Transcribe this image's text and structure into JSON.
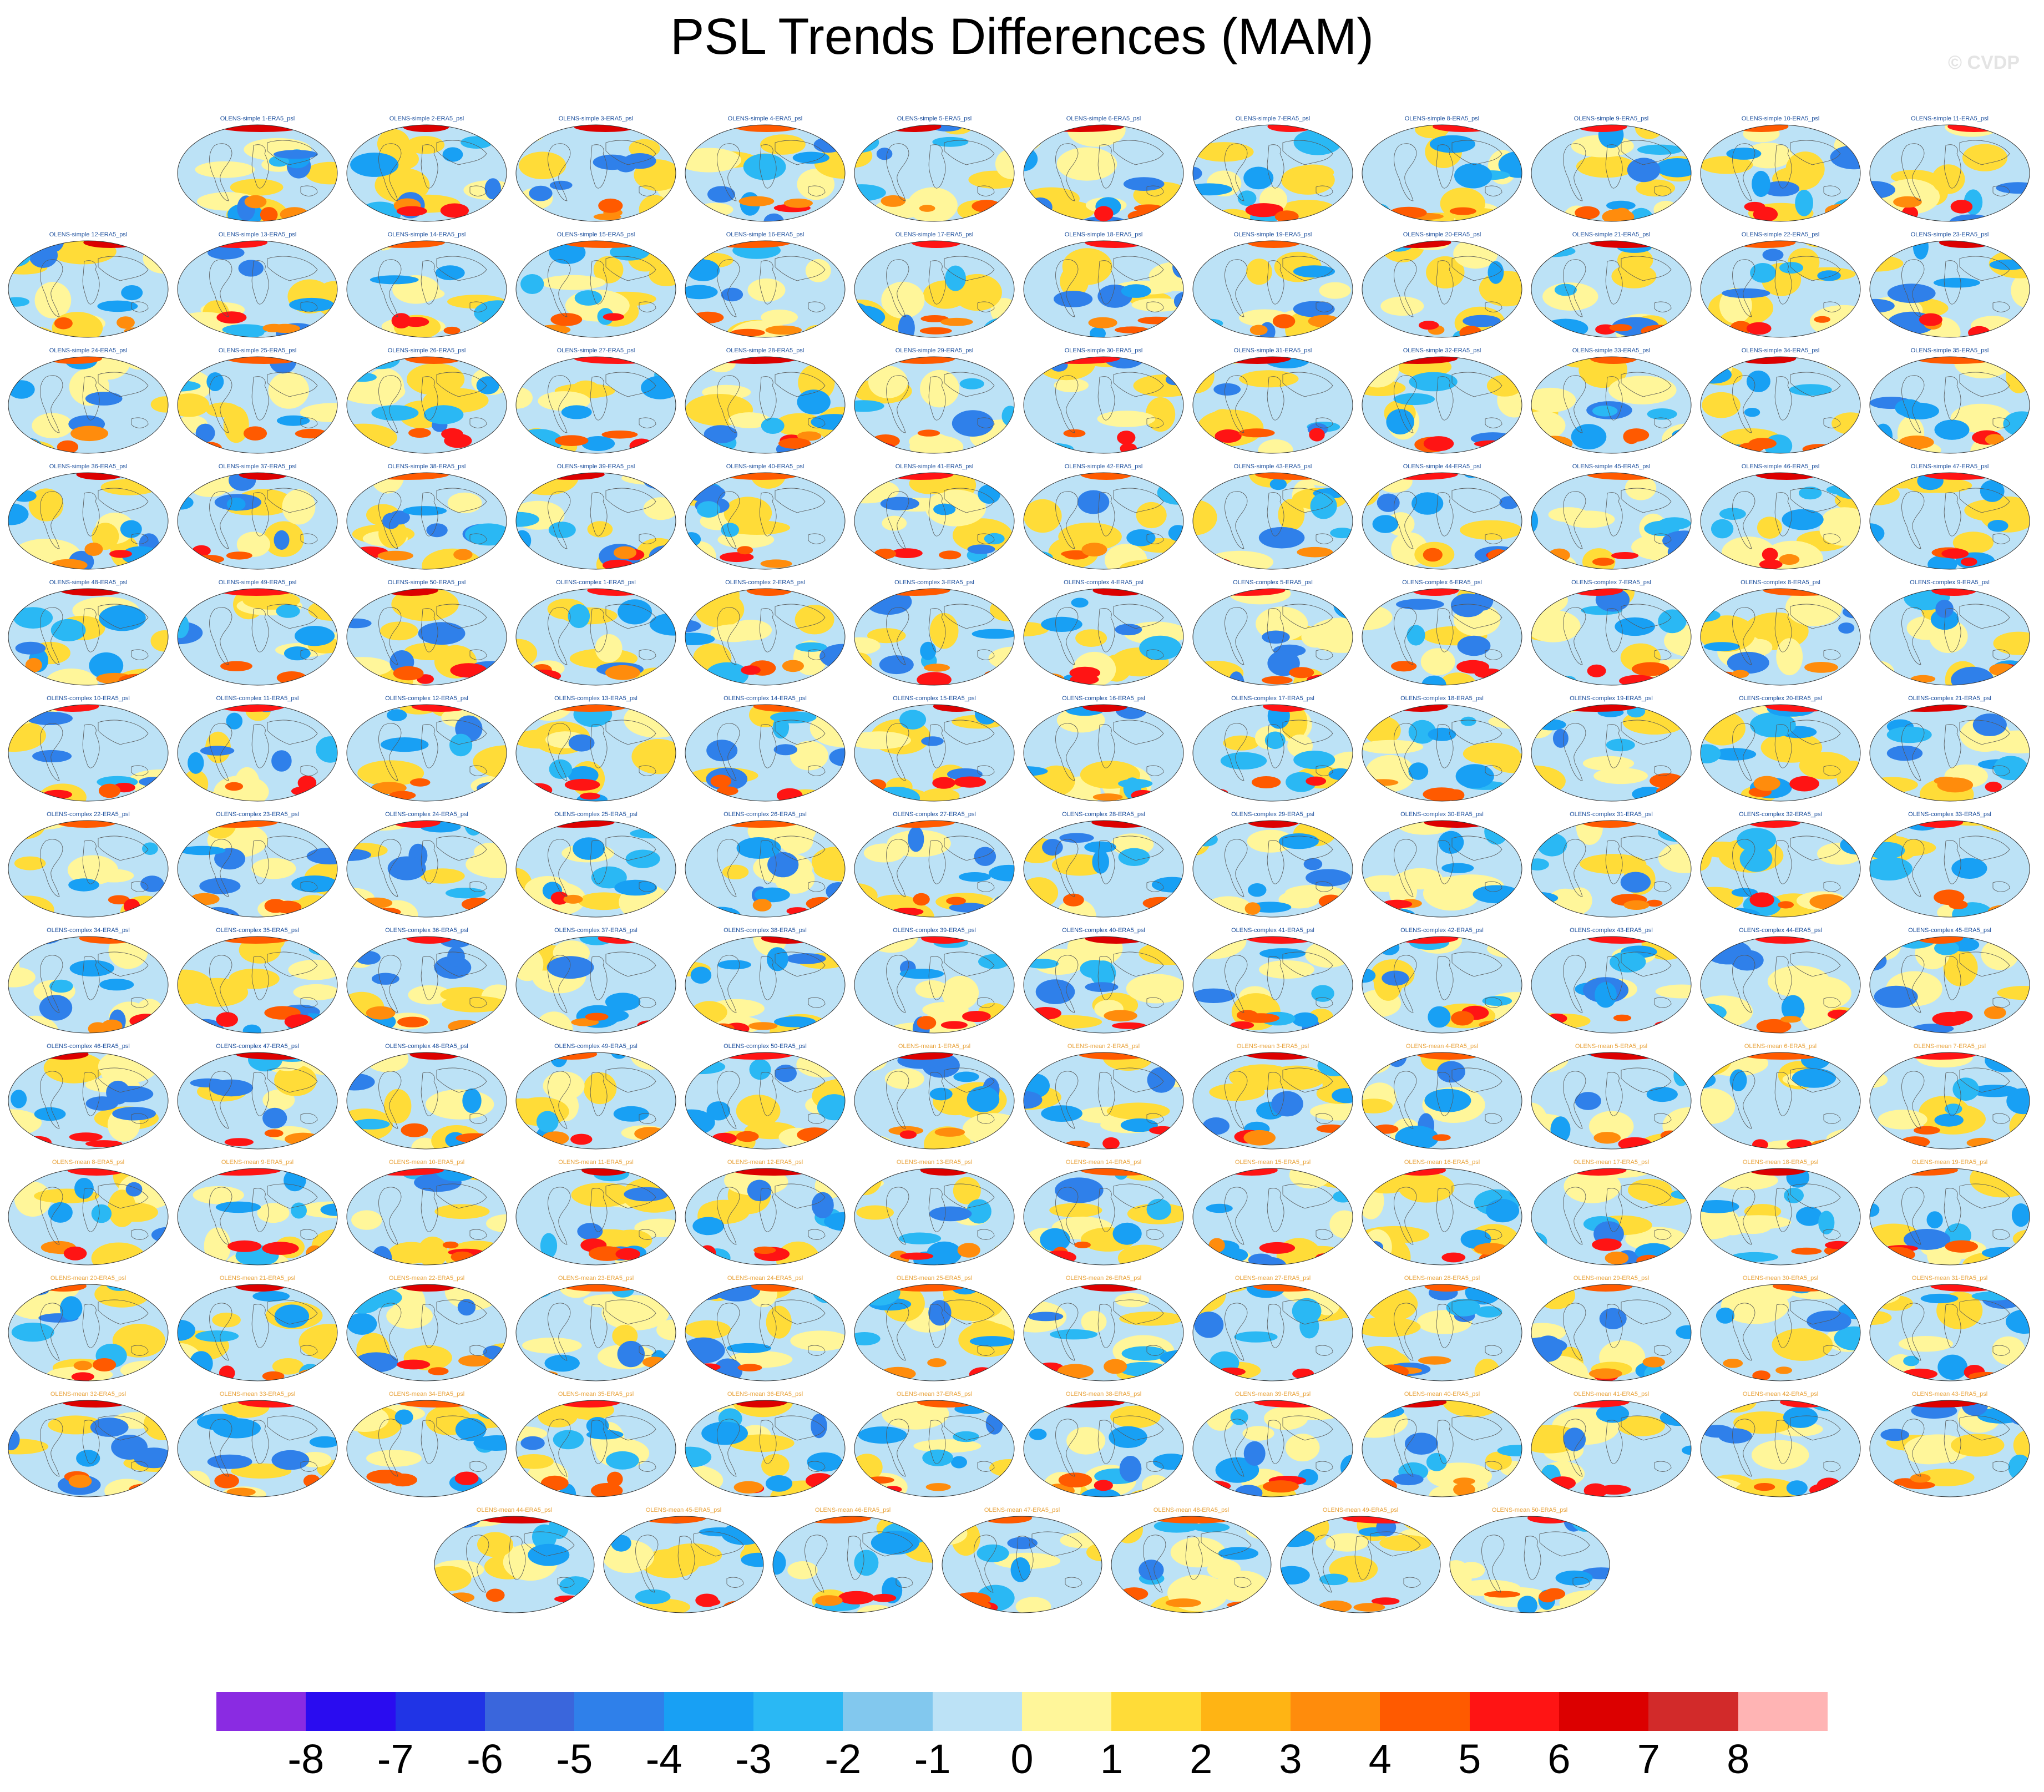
{
  "title": "PSL Trends Differences (MAM)",
  "watermark": "© CVDP",
  "panel_suffix": "-ERA5_psl",
  "groups": [
    {
      "prefix": "OLENS-simple ",
      "count": 50,
      "label_color": "#1b4e9c"
    },
    {
      "prefix": "OLENS-complex ",
      "count": 50,
      "label_color": "#1b4e9c"
    },
    {
      "prefix": "OLENS-mean ",
      "count": 50,
      "label_color": "#e8a23a"
    }
  ],
  "colorbar": {
    "colors": [
      "#8a2be2",
      "#2a0cf0",
      "#2034e6",
      "#3a66dc",
      "#2f80ea",
      "#18a0f4",
      "#2ab8f4",
      "#82c8ee",
      "#bce2f6",
      "#fff69a",
      "#ffdc38",
      "#ffb414",
      "#ff8c0c",
      "#ff5a00",
      "#ff1414",
      "#dc0000",
      "#d22a2a",
      "#ffb4b4"
    ],
    "labels": [
      "-8",
      "-7",
      "-6",
      "-5",
      "-4",
      "-3",
      "-2",
      "-1",
      "0",
      "1",
      "2",
      "3",
      "4",
      "5",
      "6",
      "7",
      "8"
    ]
  }
}
